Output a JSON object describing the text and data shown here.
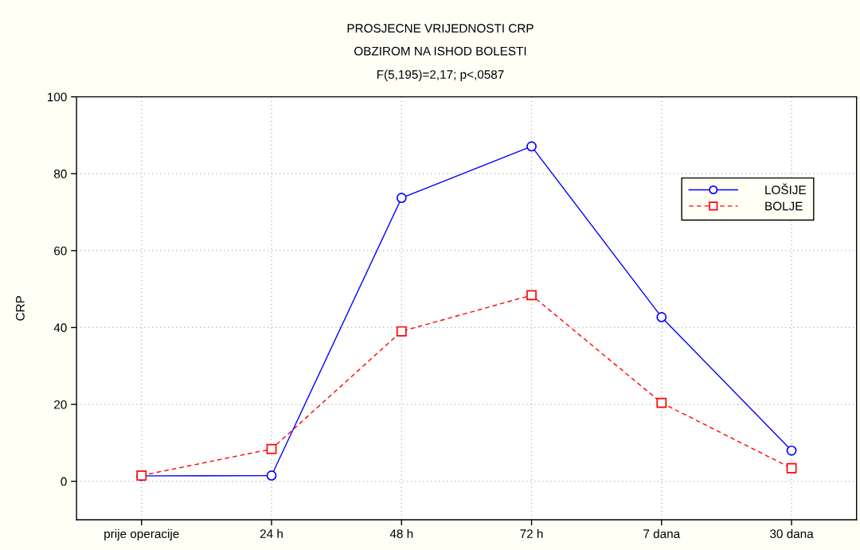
{
  "chart_data": {
    "type": "line",
    "title": "PROSJECNE VRIJEDNOSTI CRP\nOBZIROM NA ISHOD BOLESTI",
    "subtitle": "F(5,195)=2,17; p<,0587",
    "ylabel": "CRP",
    "categories": [
      "prije operacije",
      "24 h",
      "48 h",
      "72 h",
      "7 dana",
      "30 dana"
    ],
    "series": [
      {
        "name": "LOŠIJE",
        "color": "#0000ff",
        "marker": "circle",
        "line_style": "solid",
        "values": [
          1.4,
          1.5,
          73.7,
          87.1,
          42.7,
          8.0
        ]
      },
      {
        "name": "BOLJE",
        "color": "#ff0000",
        "marker": "square",
        "line_style": "dashed",
        "values": [
          1.5,
          8.4,
          39.0,
          48.4,
          20.4,
          3.4
        ]
      }
    ],
    "ylim": [
      -10,
      100
    ],
    "yticks": [
      0,
      20,
      40,
      60,
      80,
      100
    ],
    "grid": true,
    "legend": "top right"
  }
}
